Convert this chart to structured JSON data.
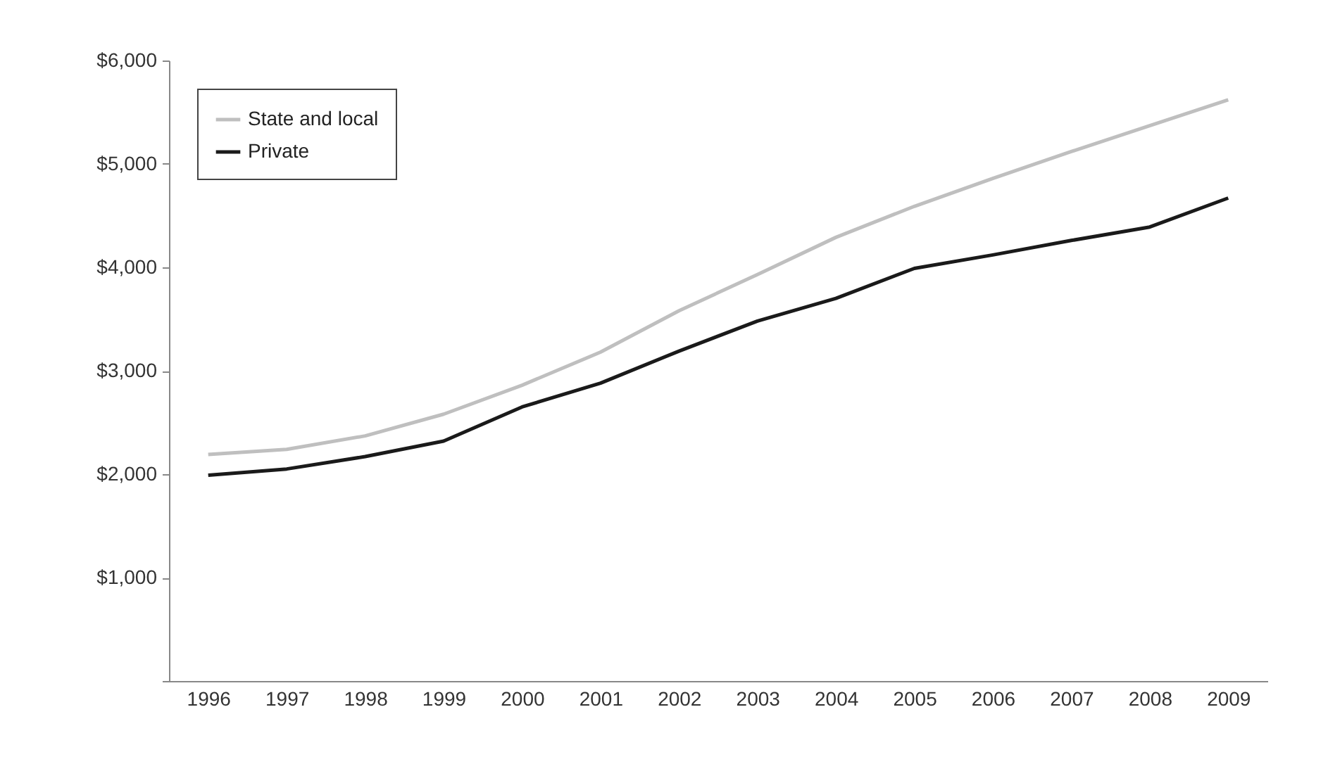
{
  "chart_data": {
    "type": "line",
    "categories": [
      "1996",
      "1997",
      "1998",
      "1999",
      "2000",
      "2001",
      "2002",
      "2003",
      "2004",
      "2005",
      "2006",
      "2007",
      "2008",
      "2009"
    ],
    "series": [
      {
        "name": "State and local",
        "color": "#bfbfbf",
        "values": [
          2190,
          2240,
          2370,
          2580,
          2860,
          3180,
          3580,
          3930,
          4290,
          4590,
          4860,
          5120,
          5370,
          5620
        ]
      },
      {
        "name": "Private",
        "color": "#1a1a1a",
        "values": [
          1990,
          2050,
          2170,
          2320,
          2650,
          2880,
          3190,
          3480,
          3700,
          3990,
          4120,
          4260,
          4390,
          4670
        ]
      }
    ],
    "ylim": [
      0,
      6000
    ],
    "yticks": [
      {
        "value": 0,
        "label": null
      },
      {
        "value": 1000,
        "label": "$1,000"
      },
      {
        "value": 2000,
        "label": "$2,000"
      },
      {
        "value": 3000,
        "label": "$3,000"
      },
      {
        "value": 4000,
        "label": "$4,000"
      },
      {
        "value": 5000,
        "label": "$5,000"
      },
      {
        "value": 6000,
        "label": "$6,000"
      }
    ],
    "grid": false,
    "legend": "top left",
    "marker": "none",
    "line_style": "solid"
  }
}
